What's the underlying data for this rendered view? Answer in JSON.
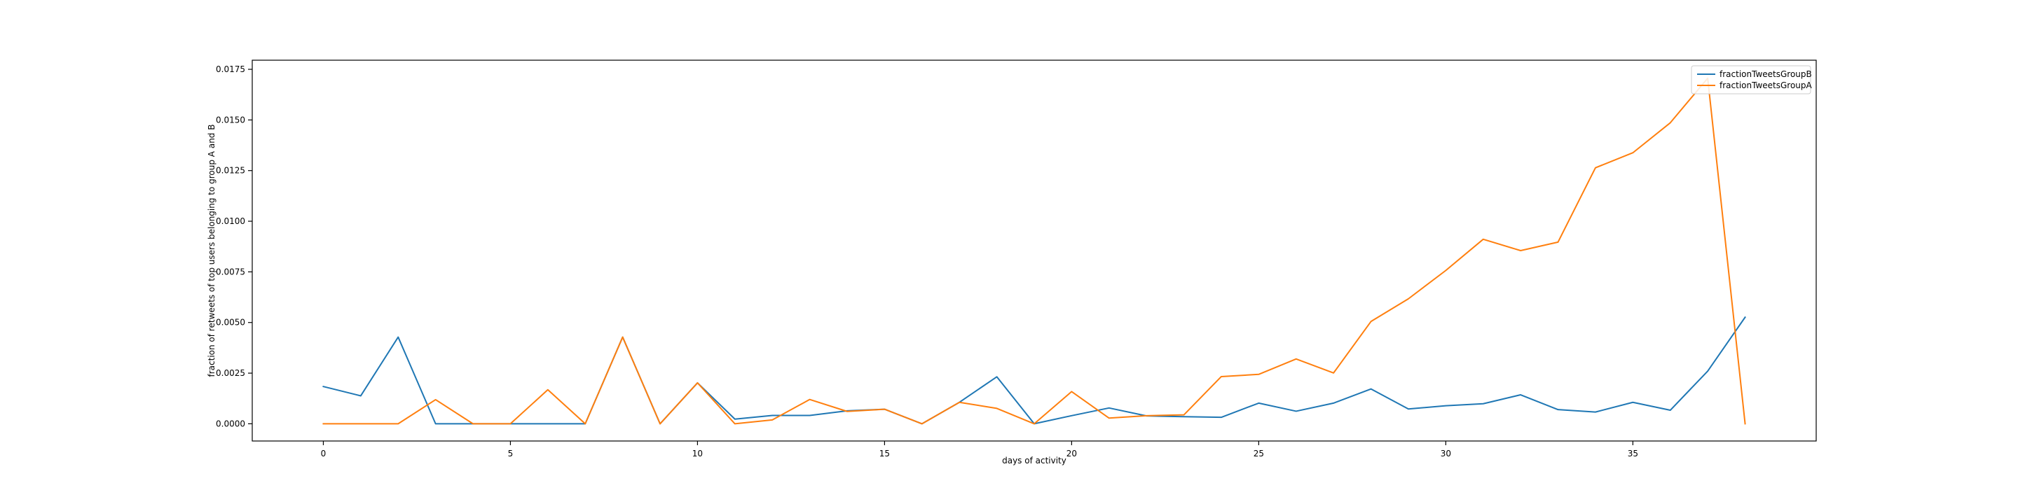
{
  "chart_data": {
    "type": "line",
    "title": "",
    "xlabel": "days of activity",
    "ylabel": "fraction of retweets of top users belonging to group A and B",
    "xlim": [
      -1.9,
      39.9
    ],
    "ylim": [
      -0.00085,
      0.01795
    ],
    "xticks": [
      0,
      5,
      10,
      15,
      20,
      25,
      30,
      35
    ],
    "xtick_labels": [
      "0",
      "5",
      "10",
      "15",
      "20",
      "25",
      "30",
      "35"
    ],
    "yticks": [
      0.0,
      0.0025,
      0.005,
      0.0075,
      0.01,
      0.0125,
      0.015,
      0.0175
    ],
    "ytick_labels": [
      "0.0000",
      "0.0025",
      "0.0050",
      "0.0075",
      "0.0100",
      "0.0125",
      "0.0150",
      "0.0175"
    ],
    "grid": false,
    "legend_position": "top-right",
    "x": [
      0,
      1,
      2,
      3,
      4,
      5,
      6,
      7,
      8,
      9,
      10,
      11,
      12,
      13,
      14,
      15,
      16,
      17,
      18,
      19,
      20,
      21,
      22,
      23,
      24,
      25,
      26,
      27,
      28,
      29,
      30,
      31,
      32,
      33,
      34,
      35,
      36,
      37,
      38
    ],
    "series": [
      {
        "name": "fractionTweetsGroupB",
        "color": "#1f77b4",
        "values": [
          0.00184,
          0.00138,
          0.00428,
          0.0,
          0.0,
          0.0,
          0.0,
          0.0,
          0.00428,
          0.0,
          0.00202,
          0.00023,
          0.00041,
          0.00041,
          0.00064,
          0.00072,
          0.0,
          0.00106,
          0.00232,
          0.0,
          0.0004,
          0.00078,
          0.00039,
          0.00035,
          0.00032,
          0.00102,
          0.00062,
          0.00102,
          0.00172,
          0.00073,
          0.00089,
          0.00099,
          0.00143,
          0.0007,
          0.00058,
          0.00106,
          0.00067,
          0.0026,
          0.00526
        ]
      },
      {
        "name": "fractionTweetsGroupA",
        "color": "#ff7f0e",
        "values": [
          0.0,
          0.0,
          0.0,
          0.00119,
          0.0,
          0.0,
          0.00168,
          0.0,
          0.00428,
          0.0,
          0.00202,
          0.0,
          0.00019,
          0.0012,
          0.00061,
          0.00072,
          0.0,
          0.00106,
          0.00076,
          0.0,
          0.00159,
          0.00028,
          0.0004,
          0.00044,
          0.00233,
          0.00244,
          0.0032,
          0.00251,
          0.00505,
          0.00617,
          0.00757,
          0.00911,
          0.00855,
          0.00897,
          0.01264,
          0.01338,
          0.01486,
          0.01706,
          0.0
        ]
      }
    ]
  }
}
